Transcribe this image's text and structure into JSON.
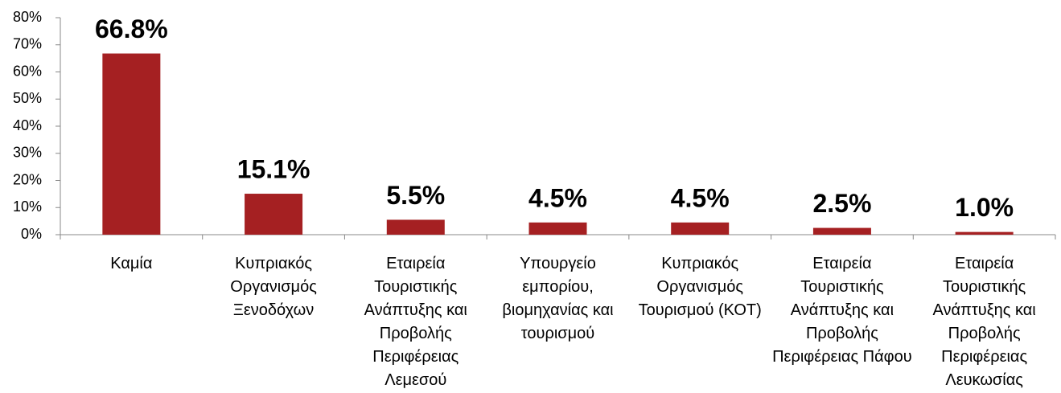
{
  "chart_data": {
    "type": "bar",
    "categories": [
      "Καμία",
      "Κυπριακός Οργανισμός Ξενοδόχων",
      "Εταιρεία Τουριστικής Ανάπτυξης και Προβολής Περιφέρειας Λεμεσού",
      "Υπουργείο εμπορίου, βιομηχανίας και τουρισμού",
      "Κυπριακός Οργανισμός Τουρισμού (ΚΟΤ)",
      "Εταιρεία Τουριστικής Ανάπτυξης και Προβολής Περιφέρειας Πάφου",
      "Εταιρεία Τουριστικής Ανάπτυξης και Προβολής Περιφέρειας Λευκωσίας"
    ],
    "values": [
      66.8,
      15.1,
      5.5,
      4.5,
      4.5,
      2.5,
      1.0
    ],
    "value_labels": [
      "66.8%",
      "15.1%",
      "5.5%",
      "4.5%",
      "4.5%",
      "2.5%",
      "1.0%"
    ],
    "color": "#a52022",
    "ylim": [
      0,
      80
    ],
    "yticks": [
      {
        "value": 0,
        "label": "0%"
      },
      {
        "value": 10,
        "label": "10%"
      },
      {
        "value": 20,
        "label": "20%"
      },
      {
        "value": 30,
        "label": "30%"
      },
      {
        "value": 40,
        "label": "40%"
      },
      {
        "value": 50,
        "label": "50%"
      },
      {
        "value": 60,
        "label": "60%"
      },
      {
        "value": 70,
        "label": "70%"
      },
      {
        "value": 80,
        "label": "80%"
      }
    ],
    "grid": false
  }
}
